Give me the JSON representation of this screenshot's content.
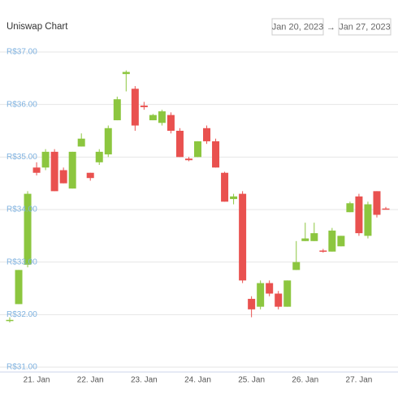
{
  "chart_data": {
    "type": "candlestick",
    "title": "Uniswap Chart",
    "date_from": "Jan 20, 2023",
    "range_separator": "→",
    "date_to": "Jan 27, 2023",
    "categories": [
      null,
      null,
      null,
      "21. Jan",
      null,
      null,
      null,
      null,
      null,
      "22. Jan",
      null,
      null,
      null,
      null,
      null,
      "23. Jan",
      null,
      null,
      null,
      null,
      null,
      "24. Jan",
      null,
      null,
      null,
      null,
      null,
      "25. Jan",
      null,
      null,
      null,
      null,
      null,
      "26. Jan",
      null,
      null,
      null,
      null,
      null,
      "27. Jan",
      null,
      null,
      null
    ],
    "open": [
      31.88,
      32.2,
      32.95,
      34.8,
      34.8,
      35.1,
      34.75,
      34.4,
      35.2,
      34.7,
      34.9,
      35.05,
      35.7,
      36.58,
      36.3,
      35.98,
      35.7,
      35.65,
      35.8,
      35.5,
      34.97,
      35.0,
      35.55,
      35.3,
      34.7,
      34.2,
      34.3,
      32.3,
      32.15,
      32.6,
      32.4,
      32.15,
      32.85,
      33.4,
      33.4,
      33.22,
      33.2,
      33.3,
      33.95,
      34.25,
      33.5,
      34.35,
      34.02
    ],
    "high": [
      31.95,
      32.85,
      34.35,
      34.9,
      35.15,
      35.15,
      34.8,
      35.1,
      35.45,
      34.7,
      35.15,
      35.6,
      36.15,
      36.65,
      36.35,
      36.05,
      35.82,
      35.9,
      35.85,
      35.55,
      35.0,
      35.3,
      35.6,
      35.35,
      34.72,
      34.3,
      34.35,
      32.35,
      32.65,
      32.65,
      32.45,
      32.65,
      33.4,
      33.75,
      33.75,
      33.25,
      33.65,
      33.5,
      34.15,
      34.3,
      34.15,
      34.35,
      34.05
    ],
    "low": [
      31.85,
      32.2,
      32.9,
      34.65,
      34.75,
      34.35,
      34.5,
      34.4,
      35.2,
      34.55,
      34.85,
      35.0,
      35.7,
      36.25,
      35.5,
      35.9,
      35.7,
      35.6,
      35.45,
      35.0,
      34.92,
      35.0,
      35.25,
      34.8,
      34.15,
      34.1,
      32.6,
      31.95,
      32.1,
      32.35,
      32.1,
      32.15,
      32.85,
      33.4,
      33.4,
      33.18,
      33.2,
      33.3,
      33.95,
      33.5,
      33.45,
      33.85,
      34.0
    ],
    "close": [
      31.9,
      32.85,
      34.3,
      34.7,
      35.1,
      34.35,
      34.5,
      35.1,
      35.35,
      34.6,
      35.1,
      35.55,
      36.1,
      36.62,
      35.6,
      35.95,
      35.8,
      35.87,
      35.5,
      35.0,
      34.94,
      35.3,
      35.3,
      34.8,
      34.15,
      34.25,
      32.65,
      32.1,
      32.6,
      32.4,
      32.15,
      32.65,
      33.0,
      33.45,
      33.55,
      33.2,
      33.6,
      33.5,
      34.12,
      33.55,
      34.1,
      33.9,
      34.01
    ],
    "up_color": "#8cc63f",
    "down_color": "#e9514f",
    "ylim": [
      31,
      37
    ],
    "yticks": [
      {
        "value": 31,
        "label": "R$31.00"
      },
      {
        "value": 32,
        "label": "R$32.00"
      },
      {
        "value": 33,
        "label": "R$33.00"
      },
      {
        "value": 34,
        "label": "R$34.00"
      },
      {
        "value": 35,
        "label": "R$35.00"
      },
      {
        "value": 36,
        "label": "R$36.00"
      },
      {
        "value": 37,
        "label": "R$37.00"
      }
    ],
    "grid": true
  }
}
